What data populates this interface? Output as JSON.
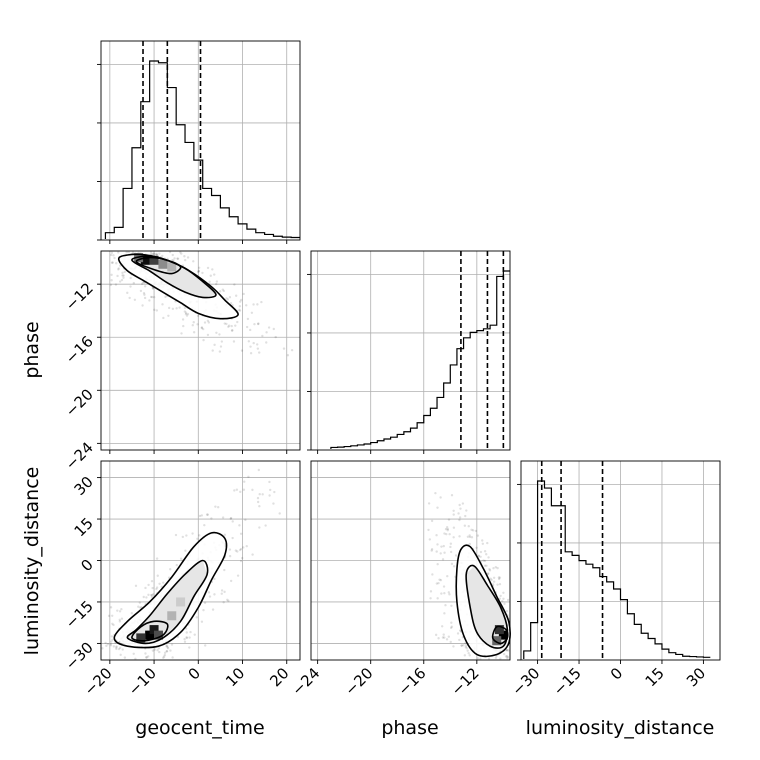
{
  "chart_data": {
    "type": "corner",
    "parameters": [
      "geocent_time",
      "phase",
      "luminosity_distance"
    ],
    "grid": true,
    "ranges": {
      "geocent_time": [
        -22,
        23
      ],
      "phase": [
        -24.5,
        -9.5
      ],
      "luminosity_distance": [
        -36,
        36
      ]
    },
    "ticks": {
      "geocent_time": [
        "−20",
        "−10",
        "0",
        "10",
        "20"
      ],
      "phase": [
        "−24",
        "−20",
        "−16",
        "−12"
      ],
      "luminosity_distance": [
        "−30",
        "−15",
        "0",
        "15",
        "30"
      ]
    },
    "tick_values": {
      "geocent_time": [
        -20,
        -10,
        0,
        10,
        20
      ],
      "phase": [
        -24,
        -20,
        -16,
        -12
      ],
      "luminosity_distance": [
        -30,
        -15,
        0,
        15,
        30
      ]
    },
    "quantiles": {
      "geocent_time": [
        -12.5,
        -7,
        0.5
      ],
      "phase": [
        -13.2,
        -11.2,
        -10.0
      ],
      "luminosity_distance": [
        -28.5,
        -21.5,
        -6.5
      ]
    },
    "histograms": {
      "geocent_time": {
        "bin_edges": [
          -21,
          -19,
          -17,
          -15,
          -13,
          -11,
          -9,
          -7,
          -5,
          -3,
          -1,
          1,
          3,
          5,
          7,
          9,
          11,
          13,
          15,
          17,
          19,
          21,
          23
        ],
        "counts": [
          0.03,
          0.06,
          0.28,
          0.51,
          0.77,
          1.0,
          0.99,
          0.85,
          0.64,
          0.54,
          0.44,
          0.28,
          0.24,
          0.17,
          0.12,
          0.08,
          0.05,
          0.03,
          0.02,
          0.01,
          0.005,
          0.003
        ]
      },
      "phase": {
        "bin_edges": [
          -23,
          -22.5,
          -22,
          -21.5,
          -21,
          -20.5,
          -20,
          -19.5,
          -19,
          -18.5,
          -18,
          -17.5,
          -17,
          -16.5,
          -16,
          -15.5,
          -15,
          -14.5,
          -14,
          -13.5,
          -13,
          -12.5,
          -12,
          -11.5,
          -11,
          -10.5,
          -10,
          -9.5
        ],
        "counts": [
          0.003,
          0.005,
          0.008,
          0.012,
          0.017,
          0.022,
          0.03,
          0.04,
          0.05,
          0.06,
          0.075,
          0.09,
          0.11,
          0.14,
          0.18,
          0.22,
          0.28,
          0.36,
          0.46,
          0.55,
          0.61,
          0.64,
          0.65,
          0.66,
          0.68,
          0.95,
          0.98
        ]
      },
      "luminosity_distance": {
        "bin_edges": [
          -35,
          -32.5,
          -30,
          -27.5,
          -25,
          -22.5,
          -20,
          -17.5,
          -15,
          -12.5,
          -10,
          -7.5,
          -5,
          -2.5,
          0,
          2.5,
          5,
          7.5,
          10,
          12.5,
          15,
          17.5,
          20,
          22.5,
          25,
          27.5,
          30,
          32.5
        ],
        "counts": [
          0.04,
          0.2,
          1.0,
          0.96,
          0.86,
          0.86,
          0.6,
          0.58,
          0.55,
          0.53,
          0.51,
          0.46,
          0.43,
          0.39,
          0.33,
          0.25,
          0.19,
          0.14,
          0.11,
          0.08,
          0.05,
          0.03,
          0.02,
          0.01,
          0.008,
          0.006,
          0.004
        ]
      }
    },
    "contours": [
      {
        "x_param": "geocent_time",
        "y_param": "phase",
        "peak": [
          -11,
          -10.2
        ],
        "levels": [
          [
            [
              -18,
              -10.1
            ],
            [
              -16,
              -9.8
            ],
            [
              -12,
              -9.8
            ],
            [
              -7,
              -10.2
            ],
            [
              -2,
              -11.0
            ],
            [
              3,
              -12.2
            ],
            [
              6,
              -13.2
            ],
            [
              9,
              -14.3
            ],
            [
              5,
              -14.6
            ],
            [
              0,
              -14.2
            ],
            [
              -4,
              -13.4
            ],
            [
              -8,
              -12.6
            ],
            [
              -12,
              -11.8
            ],
            [
              -16,
              -11.0
            ]
          ],
          [
            [
              -15,
              -10.2
            ],
            [
              -12,
              -9.9
            ],
            [
              -8,
              -10.1
            ],
            [
              -3,
              -10.8
            ],
            [
              1,
              -11.8
            ],
            [
              4,
              -12.8
            ],
            [
              1,
              -13.0
            ],
            [
              -3,
              -12.6
            ],
            [
              -7,
              -11.9
            ],
            [
              -11,
              -11.0
            ]
          ],
          [
            [
              -14,
              -10.3
            ],
            [
              -11,
              -10.0
            ],
            [
              -7,
              -10.2
            ],
            [
              -4,
              -10.7
            ],
            [
              -6,
              -11.2
            ],
            [
              -10,
              -10.9
            ]
          ]
        ],
        "heatmap_cells": [
          [
            -12,
            -10.2,
            0.95
          ],
          [
            -10,
            -10.2,
            0.75
          ],
          [
            -8,
            -10.5,
            0.45
          ],
          [
            -6,
            -10.7,
            0.3
          ],
          [
            -13.5,
            -10.0,
            0.55
          ]
        ],
        "scatter_extent": {
          "x": [
            -22,
            23
          ],
          "y": [
            -23.5,
            -9.6
          ]
        }
      },
      {
        "x_param": "geocent_time",
        "y_param": "luminosity_distance",
        "peak": [
          -11,
          -27
        ],
        "levels": [
          [
            [
              -19,
              -28
            ],
            [
              -16,
              -31
            ],
            [
              -9,
              -31
            ],
            [
              -4,
              -26
            ],
            [
              0,
              -17
            ],
            [
              3,
              -7
            ],
            [
              6,
              2
            ],
            [
              6,
              8
            ],
            [
              3,
              10
            ],
            [
              -1,
              5
            ],
            [
              -6,
              -6
            ],
            [
              -11,
              -15
            ],
            [
              -16,
              -22
            ]
          ],
          [
            [
              -16,
              -28
            ],
            [
              -12,
              -30
            ],
            [
              -8,
              -28
            ],
            [
              -4,
              -22
            ],
            [
              -1,
              -13
            ],
            [
              2,
              -5
            ],
            [
              1,
              0
            ],
            [
              -3,
              -5
            ],
            [
              -7,
              -12
            ],
            [
              -11,
              -20
            ],
            [
              -14,
              -25
            ]
          ],
          [
            [
              -15,
              -28
            ],
            [
              -12,
              -29
            ],
            [
              -8,
              -27
            ],
            [
              -7,
              -23
            ],
            [
              -10,
              -22
            ],
            [
              -13,
              -24
            ]
          ]
        ],
        "heatmap_cells": [
          [
            -11,
            -27,
            1.0
          ],
          [
            -10,
            -25,
            0.9
          ],
          [
            -13,
            -28,
            0.8
          ],
          [
            -9,
            -27,
            0.7
          ],
          [
            -6,
            -20,
            0.3
          ],
          [
            -4,
            -15,
            0.2
          ]
        ],
        "scatter_extent": {
          "x": [
            -22,
            23
          ],
          "y": [
            -36,
            36
          ]
        }
      },
      {
        "x_param": "phase",
        "y_param": "luminosity_distance",
        "peak": [
          -10,
          -27
        ],
        "levels": [
          [
            [
              -13.5,
              -3
            ],
            [
              -13.5,
              -15
            ],
            [
              -13,
              -27
            ],
            [
              -12,
              -34
            ],
            [
              -10.5,
              -34
            ],
            [
              -9.6,
              -30
            ],
            [
              -9.6,
              -22
            ],
            [
              -10.5,
              -13
            ],
            [
              -11.5,
              -3
            ],
            [
              -12.5,
              5
            ],
            [
              -13.2,
              4
            ]
          ],
          [
            [
              -12.8,
              -5
            ],
            [
              -12.5,
              -17
            ],
            [
              -12,
              -26
            ],
            [
              -11,
              -31
            ],
            [
              -10,
              -31
            ],
            [
              -9.7,
              -25
            ],
            [
              -10.2,
              -17
            ],
            [
              -11.2,
              -9
            ],
            [
              -12.2,
              -2
            ]
          ],
          [
            [
              -10.8,
              -28
            ],
            [
              -10.2,
              -30
            ],
            [
              -9.7,
              -28
            ],
            [
              -9.8,
              -25
            ],
            [
              -10.5,
              -24
            ]
          ]
        ],
        "heatmap_cells": [
          [
            -10,
            -27,
            1.0
          ],
          [
            -10.3,
            -25,
            0.8
          ],
          [
            -10.5,
            -29,
            0.6
          ]
        ],
        "scatter_extent": {
          "x": [
            -20.5,
            -9.5
          ],
          "y": [
            -36,
            36
          ]
        }
      }
    ]
  }
}
